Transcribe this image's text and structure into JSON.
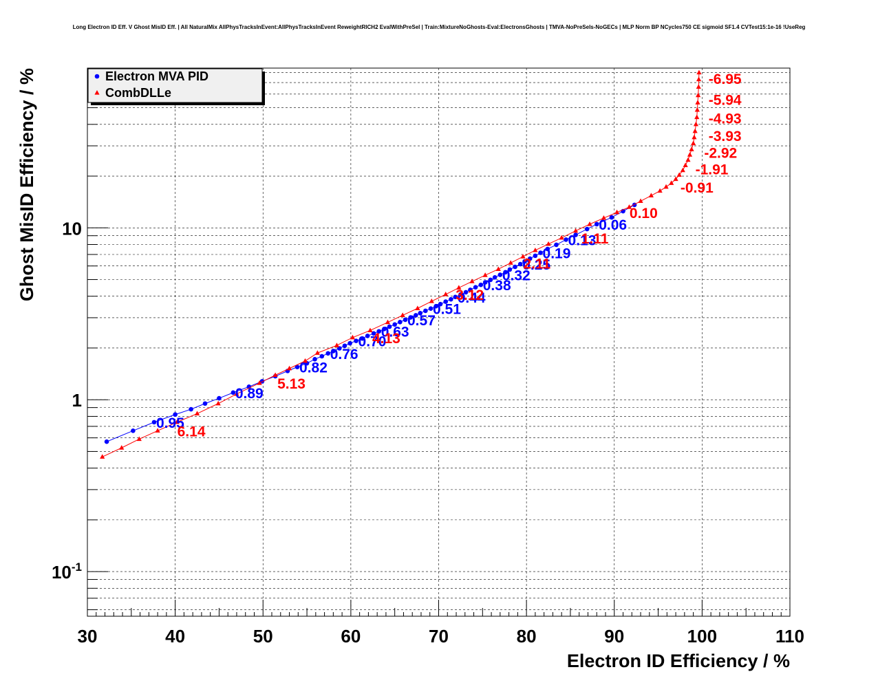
{
  "chart_data": {
    "type": "scatter",
    "title": "Long Electron ID Eff. V Ghost MisID Eff. | All NaturalMix AllPhysTracksInEvent:AllPhysTracksInEvent ReweightRICH2 EvalWithPreSel | Train:MixtureNoGhosts-Eval:ElectronsGhosts | TMVA-NoPreSels-NoGECs | MLP Norm BP NCycles750 CE sigmoid SF1.4 CVTest15:1e-16 !UseReg",
    "xlabel": "Electron ID Efficiency / %",
    "ylabel": "Ghost MisID Efficiency / %",
    "xlim": [
      30,
      110
    ],
    "ylim": [
      0.055,
      85
    ],
    "yscale": "log",
    "grid": true,
    "legend_position": "top-left",
    "x_ticks": [
      "30",
      "40",
      "50",
      "60",
      "70",
      "80",
      "90",
      "100",
      "110"
    ],
    "y_ticks": [
      {
        "value": 0.1,
        "base": "10",
        "exp": "-1"
      },
      {
        "value": 1,
        "base": "1",
        "exp": ""
      },
      {
        "value": 10,
        "base": "10",
        "exp": ""
      }
    ],
    "series": [
      {
        "name": "Electron MVA PID",
        "color": "#0000ff",
        "marker": "circle",
        "points": [
          [
            32.2,
            0.57
          ],
          [
            35.2,
            0.66
          ],
          [
            37.6,
            0.74
          ],
          [
            40.0,
            0.82
          ],
          [
            41.8,
            0.88
          ],
          [
            43.4,
            0.95
          ],
          [
            45.0,
            1.02
          ],
          [
            46.6,
            1.1
          ],
          [
            48.4,
            1.19
          ],
          [
            49.9,
            1.28
          ],
          [
            51.4,
            1.37
          ],
          [
            52.8,
            1.47
          ],
          [
            53.9,
            1.55
          ],
          [
            55.0,
            1.63
          ],
          [
            55.9,
            1.72
          ],
          [
            56.7,
            1.79
          ],
          [
            57.4,
            1.86
          ],
          [
            58.0,
            1.92
          ],
          [
            58.7,
            1.99
          ],
          [
            59.3,
            2.06
          ],
          [
            59.9,
            2.13
          ],
          [
            60.6,
            2.2
          ],
          [
            61.3,
            2.27
          ],
          [
            61.9,
            2.35
          ],
          [
            62.6,
            2.43
          ],
          [
            63.2,
            2.5
          ],
          [
            63.8,
            2.58
          ],
          [
            64.4,
            2.66
          ],
          [
            65.0,
            2.74
          ],
          [
            65.6,
            2.83
          ],
          [
            66.2,
            2.92
          ],
          [
            66.8,
            3.01
          ],
          [
            67.4,
            3.1
          ],
          [
            67.9,
            3.19
          ],
          [
            68.5,
            3.29
          ],
          [
            69.1,
            3.39
          ],
          [
            69.7,
            3.5
          ],
          [
            70.2,
            3.6
          ],
          [
            70.8,
            3.72
          ],
          [
            71.4,
            3.84
          ],
          [
            71.9,
            3.96
          ],
          [
            72.5,
            4.09
          ],
          [
            73.1,
            4.22
          ],
          [
            73.6,
            4.36
          ],
          [
            74.2,
            4.51
          ],
          [
            74.8,
            4.66
          ],
          [
            75.3,
            4.82
          ],
          [
            75.9,
            4.98
          ],
          [
            76.4,
            5.15
          ],
          [
            77.0,
            5.33
          ],
          [
            77.6,
            5.52
          ],
          [
            78.1,
            5.72
          ],
          [
            78.7,
            5.93
          ],
          [
            79.3,
            6.15
          ],
          [
            79.8,
            6.38
          ],
          [
            80.4,
            6.62
          ],
          [
            81.0,
            6.88
          ],
          [
            81.6,
            7.16
          ],
          [
            82.4,
            7.53
          ],
          [
            83.4,
            7.97
          ],
          [
            84.5,
            8.54
          ],
          [
            85.6,
            9.1
          ],
          [
            86.9,
            9.84
          ],
          [
            88.0,
            10.5
          ],
          [
            89.7,
            11.5
          ],
          [
            91.0,
            12.5
          ],
          [
            92.3,
            13.6
          ]
        ],
        "labels": [
          {
            "text": "0.95",
            "x": 37.6,
            "y": 0.74
          },
          {
            "text": "0.89",
            "x": 46.6,
            "y": 1.1
          },
          {
            "text": "0.82",
            "x": 53.9,
            "y": 1.55
          },
          {
            "text": "0.76",
            "x": 57.4,
            "y": 1.86
          },
          {
            "text": "0.70",
            "x": 60.6,
            "y": 2.2
          },
          {
            "text": "0.63",
            "x": 63.2,
            "y": 2.5
          },
          {
            "text": "0.57",
            "x": 66.2,
            "y": 2.92
          },
          {
            "text": "0.51",
            "x": 69.1,
            "y": 3.39
          },
          {
            "text": "0.44",
            "x": 71.9,
            "y": 3.96
          },
          {
            "text": "0.38",
            "x": 74.8,
            "y": 4.66
          },
          {
            "text": "0.32",
            "x": 77.0,
            "y": 5.33
          },
          {
            "text": "0.25",
            "x": 79.3,
            "y": 6.15
          },
          {
            "text": "0.19",
            "x": 81.6,
            "y": 7.16
          },
          {
            "text": "0.13",
            "x": 84.5,
            "y": 8.54
          },
          {
            "text": "0.06",
            "x": 88.0,
            "y": 10.5
          }
        ]
      },
      {
        "name": "CombDLLe",
        "color": "#ff0000",
        "marker": "triangle",
        "points": [
          [
            31.7,
            0.465
          ],
          [
            33.9,
            0.525
          ],
          [
            35.9,
            0.59
          ],
          [
            38.0,
            0.66
          ],
          [
            40.2,
            0.74
          ],
          [
            42.5,
            0.83
          ],
          [
            44.9,
            0.95
          ],
          [
            47.0,
            1.08
          ],
          [
            49.6,
            1.25
          ],
          [
            51.4,
            1.39
          ],
          [
            53.0,
            1.52
          ],
          [
            54.8,
            1.68
          ],
          [
            56.2,
            1.87
          ],
          [
            58.4,
            2.07
          ],
          [
            60.2,
            2.3
          ],
          [
            62.2,
            2.53
          ],
          [
            64.2,
            2.82
          ],
          [
            65.9,
            3.1
          ],
          [
            67.6,
            3.4
          ],
          [
            69.2,
            3.74
          ],
          [
            70.8,
            4.1
          ],
          [
            72.3,
            4.48
          ],
          [
            73.8,
            4.88
          ],
          [
            75.3,
            5.3
          ],
          [
            76.8,
            5.75
          ],
          [
            78.2,
            6.25
          ],
          [
            79.6,
            6.8
          ],
          [
            81.0,
            7.4
          ],
          [
            82.5,
            8.05
          ],
          [
            84.0,
            8.75
          ],
          [
            85.6,
            9.6
          ],
          [
            87.2,
            10.5
          ],
          [
            88.8,
            11.4
          ],
          [
            90.3,
            12.3
          ],
          [
            91.7,
            13.2
          ],
          [
            93.0,
            14.3
          ],
          [
            94.2,
            15.4
          ],
          [
            95.2,
            16.4
          ],
          [
            95.9,
            17.3
          ],
          [
            96.5,
            18.2
          ],
          [
            97.0,
            19.2
          ],
          [
            97.4,
            20.3
          ],
          [
            97.8,
            21.6
          ],
          [
            98.1,
            23.1
          ],
          [
            98.4,
            24.8
          ],
          [
            98.6,
            26.6
          ],
          [
            98.8,
            28.6
          ],
          [
            99.0,
            31.0
          ],
          [
            99.1,
            33.6
          ],
          [
            99.2,
            36.5
          ],
          [
            99.3,
            40.0
          ],
          [
            99.4,
            44.0
          ],
          [
            99.45,
            48.5
          ],
          [
            99.5,
            53.5
          ],
          [
            99.55,
            59.0
          ],
          [
            99.6,
            66.0
          ],
          [
            99.62,
            73.0
          ],
          [
            99.65,
            80.0
          ]
        ],
        "labels": [
          {
            "text": "6.14",
            "x": 40.0,
            "y": 0.66
          },
          {
            "text": "5.13",
            "x": 51.4,
            "y": 1.25
          },
          {
            "text": "4.13",
            "x": 62.2,
            "y": 2.3
          },
          {
            "text": "3.12",
            "x": 71.7,
            "y": 4.1
          },
          {
            "text": "2.11",
            "x": 79.4,
            "y": 6.25
          },
          {
            "text": "1.11",
            "x": 86.0,
            "y": 8.75
          },
          {
            "text": "0.10",
            "x": 91.5,
            "y": 12.3
          },
          {
            "text": "-0.91",
            "x": 97.3,
            "y": 17.3
          },
          {
            "text": "-1.91",
            "x": 99.0,
            "y": 22.0
          },
          {
            "text": "-2.92",
            "x": 100.0,
            "y": 27.5
          },
          {
            "text": "-3.93",
            "x": 100.5,
            "y": 34.5
          },
          {
            "text": "-4.93",
            "x": 100.5,
            "y": 43.5
          },
          {
            "text": "-5.94",
            "x": 100.5,
            "y": 56.0
          },
          {
            "text": "-6.95",
            "x": 100.5,
            "y": 74.0
          }
        ]
      }
    ]
  }
}
